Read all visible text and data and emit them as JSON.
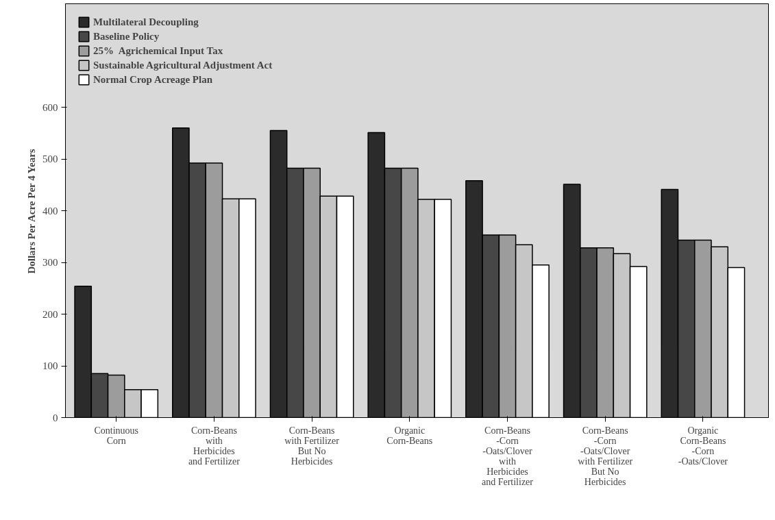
{
  "chart_data": {
    "type": "bar",
    "ylabel": "Dollars Per Acre Per 4 Years",
    "categories": [
      "Continuous\nCorn",
      "Corn-Beans\nwith\nHerbicides\nand Fertilizer",
      "Corn-Beans\nwith Fertilizer\nBut No\nHerbicides",
      "Organic\nCorn-Beans",
      "Corn-Beans\n-Corn\n-Oats/Clover\nwith\nHerbicides\nand Fertilizer",
      "Corn-Beans\n-Corn\n-Oats/Clover\nwith Fertilizer\nBut No\nHerbicides",
      "Organic\nCorn-Beans\n-Corn\n-Oats/Clover"
    ],
    "series": [
      {
        "name": "Multilateral Decoupling",
        "color": "#2b2b2b",
        "values": [
          254,
          560,
          555,
          551,
          458,
          451,
          441
        ]
      },
      {
        "name": "Baseline Policy",
        "color": "#474747",
        "values": [
          85,
          492,
          482,
          482,
          353,
          328,
          343
        ]
      },
      {
        "name": "25%  Agrichemical Input Tax",
        "color": "#9c9c9c",
        "values": [
          82,
          492,
          482,
          482,
          353,
          328,
          343
        ]
      },
      {
        "name": "Sustainable Agricultural Adjustment Act",
        "color": "#c6c6c6",
        "values": [
          54,
          423,
          428,
          422,
          334,
          317,
          330
        ]
      },
      {
        "name": "Normal Crop Acreage Plan",
        "color": "#ffffff",
        "values": [
          54,
          423,
          428,
          422,
          295,
          292,
          290
        ]
      }
    ],
    "ylim": [
      0,
      800
    ],
    "yticks": [
      0,
      100,
      200,
      300,
      400,
      500,
      600
    ],
    "legend": "top left",
    "grid": false
  }
}
